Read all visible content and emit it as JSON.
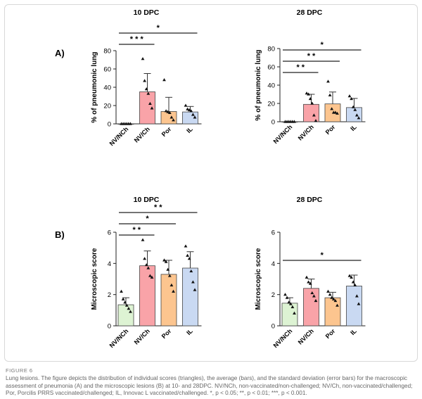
{
  "figure_label": "FIGURE 6",
  "caption": "Lung lesions. The figure depicts the distribution of individual scores (triangles), the average (bars), and the standard deviation (error bars) for the macroscopic assessment of pneumonia (A) and the microscopic lesions (B) at 10- and 28DPC. NV/NCh, non-vaccinated/non-challenged; NV/Ch, non-vaccinated/challenged; Por, Porcilis PRRS vaccinated/challenged; IL, Innovac L vaccinated/challenged. *, p < 0.05; **, p < 0.01; ***, p < 0.001.",
  "panel_labels": [
    "A)",
    "B)"
  ],
  "colors": {
    "NV/NCh": "#ddf3d3",
    "NV/Ch": "#f9a3a8",
    "Por": "#fcc58f",
    "IL": "#c9d9f2"
  },
  "chart_data": [
    {
      "type": "bar",
      "title": "10 DPC",
      "ylabel": "% of pneumonic lung",
      "categories": [
        "NV/NCh",
        "NV/Ch",
        "Por",
        "IL"
      ],
      "values": [
        0,
        35,
        13.5,
        13
      ],
      "sd": [
        0,
        20,
        15.5,
        6
      ],
      "points": [
        [
          0,
          0,
          0,
          0,
          0,
          0
        ],
        [
          71,
          47,
          38,
          33,
          22,
          17
        ],
        [
          48,
          14,
          13,
          12,
          7,
          4
        ],
        [
          20,
          16,
          15,
          14,
          10,
          7
        ]
      ],
      "ylim": [
        0,
        80
      ],
      "yticks": [
        0,
        20,
        40,
        60,
        80
      ],
      "significance": [
        {
          "from": 0,
          "to": 3,
          "label": "*"
        },
        {
          "from": 0,
          "to": 1,
          "label": "* * *"
        }
      ]
    },
    {
      "type": "bar",
      "title": "28 DPC",
      "ylabel": "% of pneumonic lung",
      "categories": [
        "NV/NCh",
        "NV/Ch",
        "Por",
        "IL"
      ],
      "values": [
        0,
        19,
        19.5,
        15.5
      ],
      "sd": [
        0,
        11,
        13,
        10
      ],
      "points": [
        [
          0,
          0,
          0,
          0,
          0,
          0
        ],
        [
          31,
          30,
          25,
          20,
          7,
          1
        ],
        [
          44,
          29,
          14,
          10,
          10,
          9
        ],
        [
          28,
          25,
          16,
          13,
          7,
          4
        ]
      ],
      "ylim": [
        0,
        80
      ],
      "yticks": [
        0,
        20,
        40,
        60,
        80
      ],
      "significance": [
        {
          "from": 0,
          "to": 3,
          "label": "*"
        },
        {
          "from": 0,
          "to": 2,
          "label": "* *"
        },
        {
          "from": 0,
          "to": 1,
          "label": "* *"
        }
      ]
    },
    {
      "type": "bar",
      "title": "10 DPC",
      "ylabel": "Microscopic score",
      "categories": [
        "NV/NCh",
        "NV/Ch",
        "Por",
        "IL"
      ],
      "values": [
        1.35,
        3.85,
        3.3,
        3.7
      ],
      "sd": [
        0.45,
        0.95,
        0.9,
        1.05
      ],
      "points": [
        [
          2.2,
          1.7,
          1.5,
          1.3,
          1.1,
          0.9
        ],
        [
          5.5,
          4.3,
          3.9,
          3.7,
          3.2,
          3.1
        ],
        [
          4.2,
          4.1,
          3.6,
          3.2,
          2.6,
          2.2
        ],
        [
          5.1,
          4.5,
          4.3,
          3.5,
          2.8,
          2.3
        ]
      ],
      "ylim": [
        0,
        6
      ],
      "yticks": [
        0,
        2,
        4,
        6
      ],
      "significance": [
        {
          "from": 0,
          "to": 3,
          "label": "* *"
        },
        {
          "from": 0,
          "to": 2,
          "label": "*"
        },
        {
          "from": 0,
          "to": 1,
          "label": "* *"
        }
      ]
    },
    {
      "type": "bar",
      "title": "28 DPC",
      "ylabel": "Microscopic score",
      "categories": [
        "NV/NCh",
        "NV/Ch",
        "Por",
        "IL"
      ],
      "values": [
        1.45,
        2.4,
        1.8,
        2.55
      ],
      "sd": [
        0.35,
        0.6,
        0.35,
        0.7
      ],
      "points": [
        [
          2.0,
          1.8,
          1.5,
          1.4,
          1.2,
          0.8
        ],
        [
          3.1,
          2.8,
          2.7,
          2.1,
          1.9,
          1.6
        ],
        [
          2.2,
          2.0,
          1.8,
          1.7,
          1.6,
          1.3
        ],
        [
          3.2,
          3.1,
          2.8,
          2.6,
          1.9,
          1.4
        ]
      ],
      "ylim": [
        0,
        6
      ],
      "yticks": [
        0,
        2,
        4,
        6
      ],
      "significance": [
        {
          "from": 0,
          "to": 3,
          "label": "*"
        }
      ]
    }
  ]
}
